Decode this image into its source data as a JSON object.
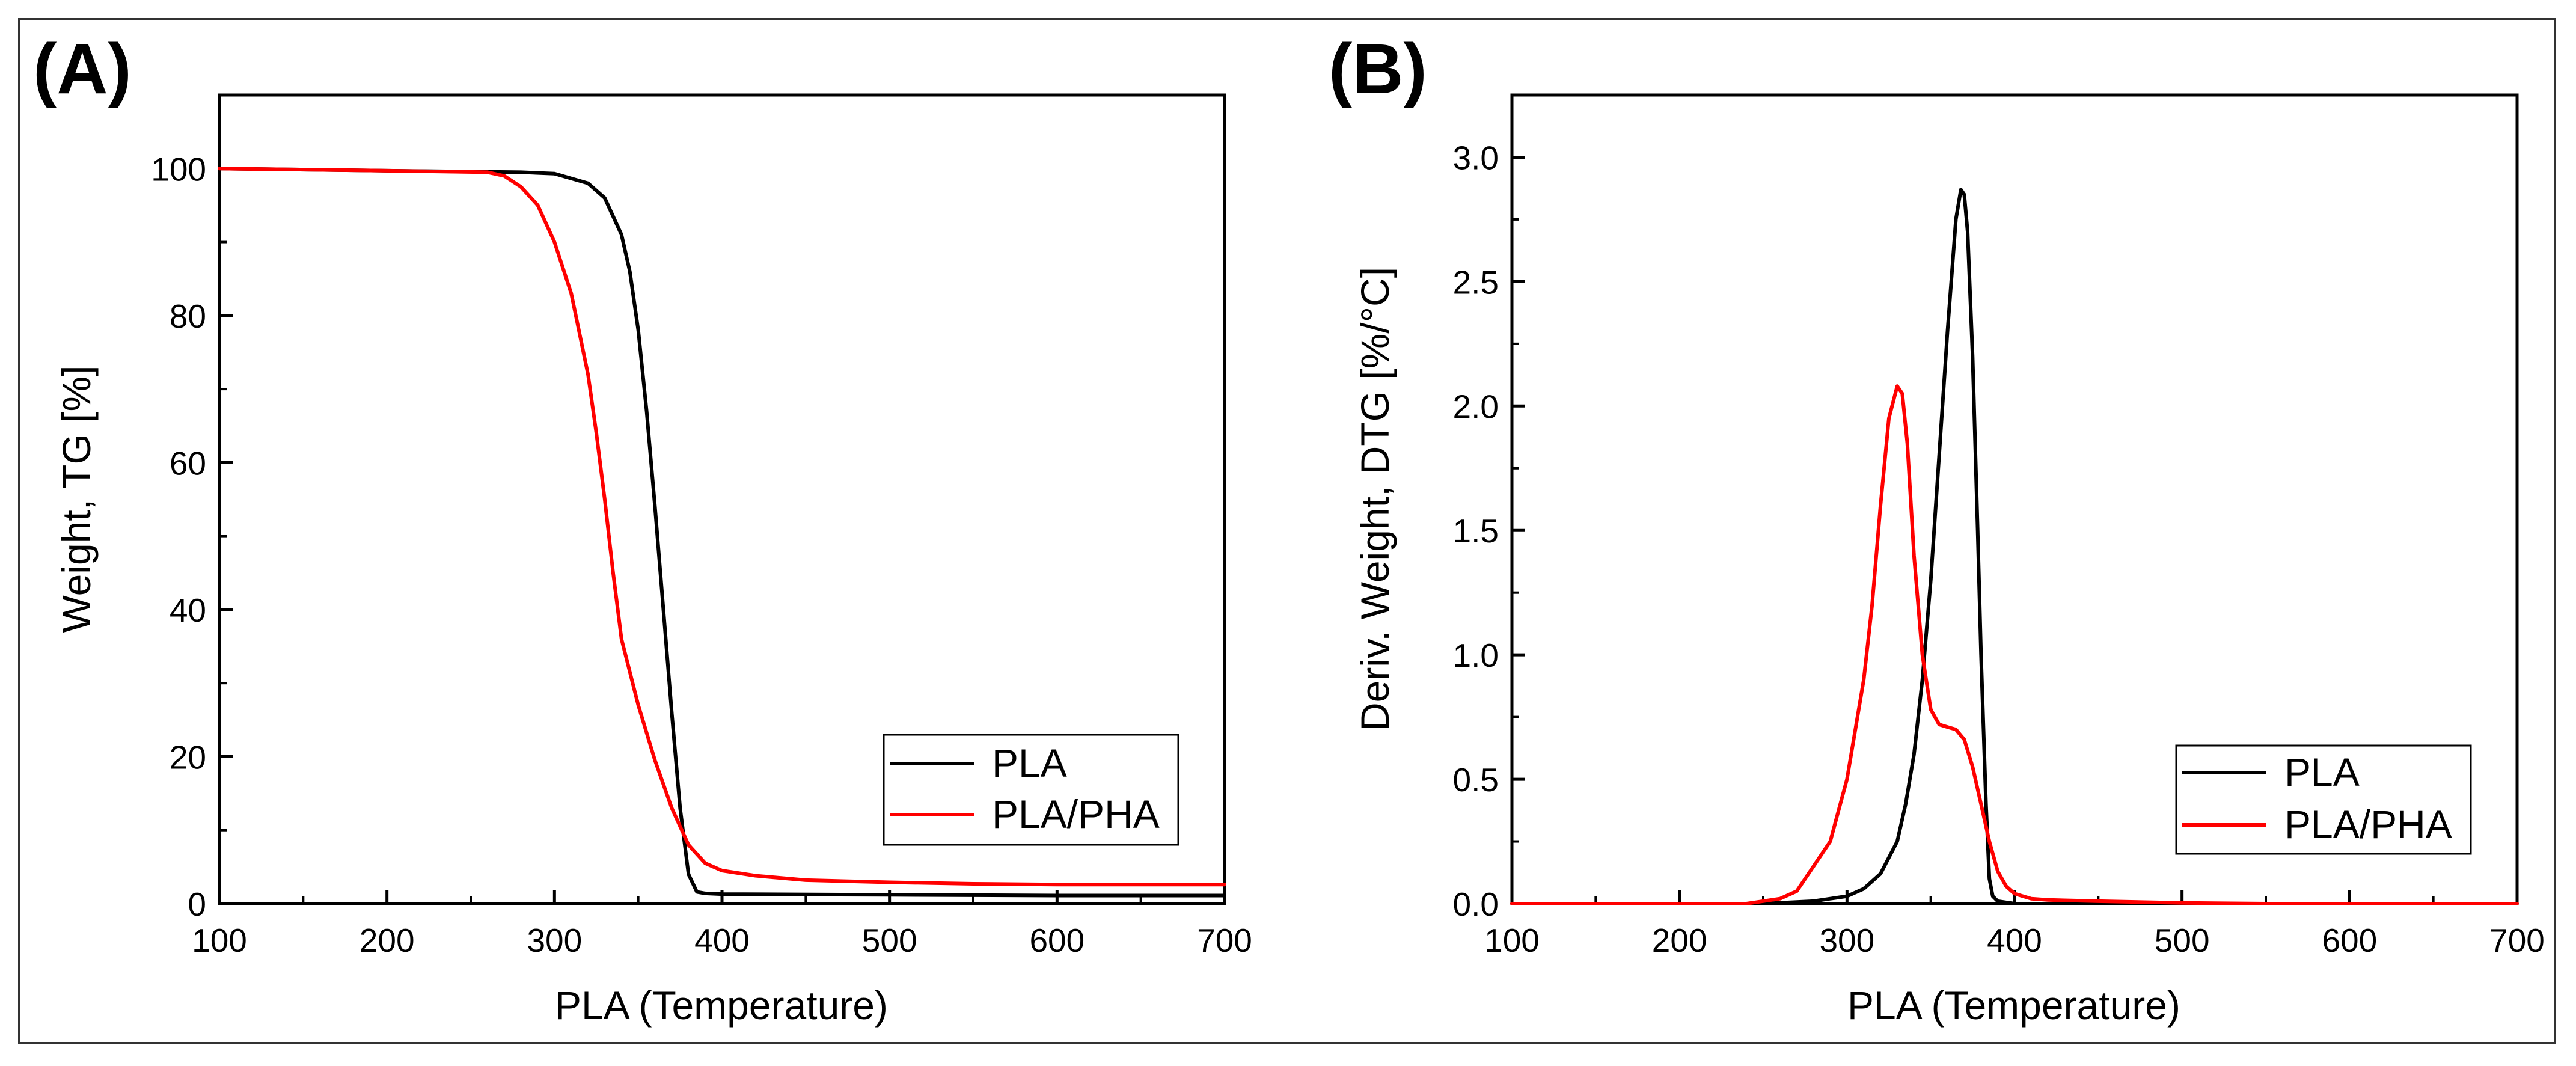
{
  "chart_data": [
    {
      "type": "line",
      "panel_label": "(A)",
      "xlabel": "PLA (Temperature)",
      "ylabel": "Weight, TG [%]",
      "xlim": [
        100,
        700
      ],
      "ylim": [
        0,
        110
      ],
      "xticks": [
        "100",
        "200",
        "300",
        "400",
        "500",
        "600",
        "700"
      ],
      "yticks": [
        "0",
        "20",
        "40",
        "60",
        "80",
        "100"
      ],
      "grid": false,
      "legend_position": "bottom-right",
      "series": [
        {
          "name": "PLA",
          "color": "#000000",
          "x": [
            100,
            200,
            280,
            300,
            320,
            330,
            340,
            345,
            350,
            355,
            360,
            365,
            370,
            375,
            380,
            385,
            390,
            400,
            500,
            600,
            700
          ],
          "y": [
            100,
            99.7,
            99.5,
            99.3,
            98,
            96,
            91,
            86,
            78,
            67,
            54,
            40,
            26,
            13,
            4,
            1.6,
            1.4,
            1.3,
            1.2,
            1.1,
            1.1
          ]
        },
        {
          "name": "PLA/PHA",
          "color": "#ff0000",
          "x": [
            100,
            200,
            260,
            270,
            280,
            290,
            300,
            310,
            320,
            325,
            330,
            335,
            340,
            350,
            360,
            370,
            380,
            390,
            400,
            420,
            450,
            500,
            550,
            600,
            700
          ],
          "y": [
            100,
            99.7,
            99.5,
            99,
            97.5,
            95,
            90,
            83,
            72,
            64,
            55,
            45,
            36,
            27,
            19.5,
            13,
            8,
            5.5,
            4.5,
            3.8,
            3.2,
            2.9,
            2.7,
            2.6,
            2.6
          ]
        }
      ]
    },
    {
      "type": "line",
      "panel_label": "(B)",
      "xlabel": "PLA (Temperature)",
      "ylabel": "Deriv. Weight, DTG [%/°C]",
      "xlim": [
        100,
        700
      ],
      "ylim": [
        0,
        3.25
      ],
      "xticks": [
        "100",
        "200",
        "300",
        "400",
        "500",
        "600",
        "700"
      ],
      "yticks": [
        "0.0",
        "0.5",
        "1.0",
        "1.5",
        "2.0",
        "2.5",
        "3.0"
      ],
      "grid": false,
      "legend_position": "bottom-right",
      "series": [
        {
          "name": "PLA",
          "color": "#000000",
          "x": [
            100,
            250,
            280,
            290,
            300,
            310,
            320,
            330,
            335,
            340,
            345,
            350,
            355,
            360,
            365,
            368,
            370,
            372,
            375,
            378,
            380,
            383,
            385,
            387,
            390,
            400,
            700
          ],
          "y": [
            0,
            0,
            0.01,
            0.02,
            0.03,
            0.06,
            0.12,
            0.25,
            0.4,
            0.6,
            0.9,
            1.3,
            1.8,
            2.3,
            2.75,
            2.87,
            2.85,
            2.7,
            2.2,
            1.5,
            1.0,
            0.4,
            0.1,
            0.03,
            0.01,
            0,
            0
          ]
        },
        {
          "name": "PLA/PHA",
          "color": "#ff0000",
          "x": [
            100,
            240,
            260,
            270,
            275,
            280,
            290,
            300,
            310,
            315,
            320,
            325,
            330,
            333,
            336,
            340,
            345,
            350,
            355,
            360,
            365,
            370,
            375,
            380,
            385,
            390,
            395,
            400,
            410,
            420,
            450,
            500,
            550,
            700
          ],
          "y": [
            0,
            0,
            0.02,
            0.05,
            0.1,
            0.15,
            0.25,
            0.5,
            0.9,
            1.2,
            1.6,
            1.95,
            2.08,
            2.05,
            1.85,
            1.4,
            1.0,
            0.78,
            0.72,
            0.71,
            0.7,
            0.66,
            0.55,
            0.4,
            0.25,
            0.13,
            0.07,
            0.04,
            0.02,
            0.015,
            0.01,
            0.003,
            0,
            0
          ]
        }
      ]
    }
  ]
}
